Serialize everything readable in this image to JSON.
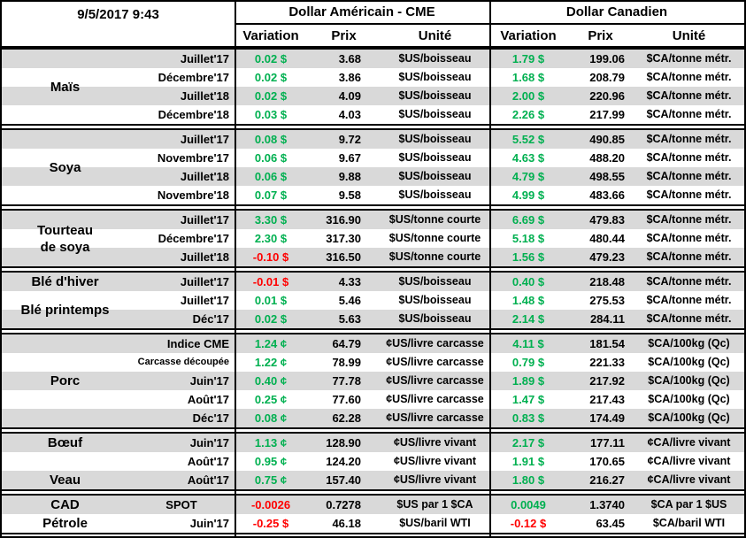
{
  "header": {
    "datetime": "9/5/2017 9:43",
    "usd_title": "Dollar Américain - CME",
    "cad_title": "Dollar Canadien",
    "columns": {
      "variation": "Variation",
      "prix": "Prix",
      "unite": "Unité"
    }
  },
  "colors": {
    "positive": "#00b050",
    "negative": "#ff0000",
    "stripe": "#d9d9d9"
  },
  "groups": [
    {
      "labels": [
        {
          "lines": [
            "Maïs"
          ],
          "row_start": 0,
          "row_span": 4
        }
      ],
      "rows": [
        {
          "month": "Juillet'17",
          "us_var": "0.02 $",
          "us_neg": false,
          "us_prix": "3.68",
          "us_unit": "$US/boisseau",
          "ca_var": "1.79 $",
          "ca_neg": false,
          "ca_prix": "199.06",
          "ca_unit": "$CA/tonne métr."
        },
        {
          "month": "Décembre'17",
          "us_var": "0.02 $",
          "us_neg": false,
          "us_prix": "3.86",
          "us_unit": "$US/boisseau",
          "ca_var": "1.68 $",
          "ca_neg": false,
          "ca_prix": "208.79",
          "ca_unit": "$CA/tonne métr."
        },
        {
          "month": "Juillet'18",
          "us_var": "0.02 $",
          "us_neg": false,
          "us_prix": "4.09",
          "us_unit": "$US/boisseau",
          "ca_var": "2.00 $",
          "ca_neg": false,
          "ca_prix": "220.96",
          "ca_unit": "$CA/tonne métr."
        },
        {
          "month": "Décembre'18",
          "us_var": "0.03 $",
          "us_neg": false,
          "us_prix": "4.03",
          "us_unit": "$US/boisseau",
          "ca_var": "2.26 $",
          "ca_neg": false,
          "ca_prix": "217.99",
          "ca_unit": "$CA/tonne métr."
        }
      ]
    },
    {
      "labels": [
        {
          "lines": [
            "Soya"
          ],
          "row_start": 0,
          "row_span": 4
        }
      ],
      "rows": [
        {
          "month": "Juillet'17",
          "us_var": "0.08 $",
          "us_neg": false,
          "us_prix": "9.72",
          "us_unit": "$US/boisseau",
          "ca_var": "5.52 $",
          "ca_neg": false,
          "ca_prix": "490.85",
          "ca_unit": "$CA/tonne métr."
        },
        {
          "month": "Novembre'17",
          "us_var": "0.06 $",
          "us_neg": false,
          "us_prix": "9.67",
          "us_unit": "$US/boisseau",
          "ca_var": "4.63 $",
          "ca_neg": false,
          "ca_prix": "488.20",
          "ca_unit": "$CA/tonne métr."
        },
        {
          "month": "Juillet'18",
          "us_var": "0.06 $",
          "us_neg": false,
          "us_prix": "9.88",
          "us_unit": "$US/boisseau",
          "ca_var": "4.79 $",
          "ca_neg": false,
          "ca_prix": "498.55",
          "ca_unit": "$CA/tonne métr."
        },
        {
          "month": "Novembre'18",
          "us_var": "0.07 $",
          "us_neg": false,
          "us_prix": "9.58",
          "us_unit": "$US/boisseau",
          "ca_var": "4.99 $",
          "ca_neg": false,
          "ca_prix": "483.66",
          "ca_unit": "$CA/tonne métr."
        }
      ]
    },
    {
      "labels": [
        {
          "lines": [
            "Tourteau",
            "de soya"
          ],
          "row_start": 0,
          "row_span": 3
        }
      ],
      "rows": [
        {
          "month": "Juillet'17",
          "us_var": "3.30 $",
          "us_neg": false,
          "us_prix": "316.90",
          "us_unit": "$US/tonne courte",
          "ca_var": "6.69 $",
          "ca_neg": false,
          "ca_prix": "479.83",
          "ca_unit": "$CA/tonne métr."
        },
        {
          "month": "Décembre'17",
          "us_var": "2.30 $",
          "us_neg": false,
          "us_prix": "317.30",
          "us_unit": "$US/tonne courte",
          "ca_var": "5.18 $",
          "ca_neg": false,
          "ca_prix": "480.44",
          "ca_unit": "$CA/tonne métr."
        },
        {
          "month": "Juillet'18",
          "us_var": "-0.10 $",
          "us_neg": true,
          "us_prix": "316.50",
          "us_unit": "$US/tonne courte",
          "ca_var": "1.56 $",
          "ca_neg": false,
          "ca_prix": "479.23",
          "ca_unit": "$CA/tonne métr."
        }
      ]
    },
    {
      "labels": [
        {
          "lines": [
            "Blé d'hiver"
          ],
          "row_start": 0,
          "row_span": 1
        },
        {
          "lines": [
            "Blé printemps"
          ],
          "row_start": 1,
          "row_span": 2
        }
      ],
      "rows": [
        {
          "month": "Juillet'17",
          "us_var": "-0.01 $",
          "us_neg": true,
          "us_prix": "4.33",
          "us_unit": "$US/boisseau",
          "ca_var": "0.40 $",
          "ca_neg": false,
          "ca_prix": "218.48",
          "ca_unit": "$CA/tonne métr."
        },
        {
          "month": "Juillet'17",
          "us_var": "0.01 $",
          "us_neg": false,
          "us_prix": "5.46",
          "us_unit": "$US/boisseau",
          "ca_var": "1.48 $",
          "ca_neg": false,
          "ca_prix": "275.53",
          "ca_unit": "$CA/tonne métr."
        },
        {
          "month": "Déc'17",
          "us_var": "0.02 $",
          "us_neg": false,
          "us_prix": "5.63",
          "us_unit": "$US/boisseau",
          "ca_var": "2.14 $",
          "ca_neg": false,
          "ca_prix": "284.11",
          "ca_unit": "$CA/tonne métr."
        }
      ]
    },
    {
      "labels": [
        {
          "lines": [
            "Porc"
          ],
          "row_start": 0,
          "row_span": 5
        }
      ],
      "rows": [
        {
          "month": "Indice CME",
          "us_var": "1.24 ¢",
          "us_neg": false,
          "us_prix": "64.79",
          "us_unit": "¢US/livre carcasse",
          "ca_var": "4.11 $",
          "ca_neg": false,
          "ca_prix": "181.54",
          "ca_unit": "$CA/100kg (Qc)"
        },
        {
          "month": "Carcasse découpée",
          "us_var": "1.22 ¢",
          "us_neg": false,
          "us_prix": "78.99",
          "us_unit": "¢US/livre carcasse",
          "ca_var": "0.79 $",
          "ca_neg": false,
          "ca_prix": "221.33",
          "ca_unit": "$CA/100kg (Qc)"
        },
        {
          "month": "Juin'17",
          "us_var": "0.40 ¢",
          "us_neg": false,
          "us_prix": "77.78",
          "us_unit": "¢US/livre carcasse",
          "ca_var": "1.89 $",
          "ca_neg": false,
          "ca_prix": "217.92",
          "ca_unit": "$CA/100kg (Qc)"
        },
        {
          "month": "Août'17",
          "us_var": "0.25 ¢",
          "us_neg": false,
          "us_prix": "77.60",
          "us_unit": "¢US/livre carcasse",
          "ca_var": "1.47 $",
          "ca_neg": false,
          "ca_prix": "217.43",
          "ca_unit": "$CA/100kg (Qc)"
        },
        {
          "month": "Déc'17",
          "us_var": "0.08 ¢",
          "us_neg": false,
          "us_prix": "62.28",
          "us_unit": "¢US/livre carcasse",
          "ca_var": "0.83 $",
          "ca_neg": false,
          "ca_prix": "174.49",
          "ca_unit": "$CA/100kg (Qc)"
        }
      ]
    },
    {
      "labels": [
        {
          "lines": [
            "Bœuf"
          ],
          "row_start": 0,
          "row_span": 1
        },
        {
          "lines": [
            "Veau"
          ],
          "row_start": 2,
          "row_span": 1
        }
      ],
      "rows": [
        {
          "month": "Juin'17",
          "us_var": "1.13 ¢",
          "us_neg": false,
          "us_prix": "128.90",
          "us_unit": "¢US/livre vivant",
          "ca_var": "2.17 $",
          "ca_neg": false,
          "ca_prix": "177.11",
          "ca_unit": "¢CA/livre vivant"
        },
        {
          "month": "Août'17",
          "us_var": "0.95 ¢",
          "us_neg": false,
          "us_prix": "124.20",
          "us_unit": "¢US/livre vivant",
          "ca_var": "1.91 $",
          "ca_neg": false,
          "ca_prix": "170.65",
          "ca_unit": "¢CA/livre vivant"
        },
        {
          "month": "Août'17",
          "us_var": "0.75 ¢",
          "us_neg": false,
          "us_prix": "157.40",
          "us_unit": "¢US/livre vivant",
          "ca_var": "1.80 $",
          "ca_neg": false,
          "ca_prix": "216.27",
          "ca_unit": "¢CA/livre vivant"
        }
      ]
    },
    {
      "labels": [
        {
          "lines": [
            "CAD"
          ],
          "row_start": 0,
          "row_span": 1
        },
        {
          "lines": [
            "Pétrole"
          ],
          "row_start": 1,
          "row_span": 1
        }
      ],
      "rows": [
        {
          "month": "SPOT",
          "us_var": "-0.0026",
          "us_neg": true,
          "us_prix": "0.7278",
          "us_unit": "$US par 1 $CA",
          "ca_var": "0.0049",
          "ca_neg": false,
          "ca_prix": "1.3740",
          "ca_unit": "$CA par 1 $US"
        },
        {
          "month": "Juin'17",
          "us_var": "-0.25 $",
          "us_neg": true,
          "us_prix": "46.18",
          "us_unit": "$US/baril WTI",
          "ca_var": "-0.12 $",
          "ca_neg": true,
          "ca_prix": "63.45",
          "ca_unit": "$CA/baril WTI"
        }
      ]
    }
  ]
}
